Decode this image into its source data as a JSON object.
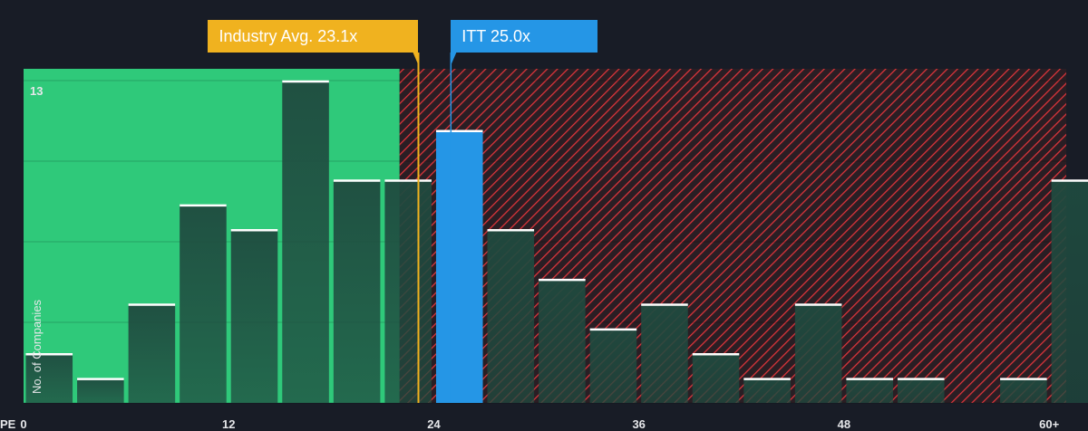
{
  "chart_data": {
    "type": "bar",
    "xlabel": "PE",
    "ylabel": "No. of Companies",
    "x_ticks": [
      "0",
      "12",
      "24",
      "36",
      "48",
      "60+"
    ],
    "x_tick_values": [
      0,
      12,
      24,
      36,
      48,
      60
    ],
    "xlim": [
      0,
      61
    ],
    "ylim": [
      0,
      13
    ],
    "y_tick_label": "13",
    "y_gridlines": [
      0,
      3.25,
      6.5,
      9.75,
      13
    ],
    "bin_width": 3,
    "bins": [
      {
        "start": 0,
        "value": 2
      },
      {
        "start": 3,
        "value": 1
      },
      {
        "start": 6,
        "value": 4
      },
      {
        "start": 9,
        "value": 8
      },
      {
        "start": 12,
        "value": 7
      },
      {
        "start": 15,
        "value": 13
      },
      {
        "start": 18,
        "value": 9
      },
      {
        "start": 21,
        "value": 9
      },
      {
        "start": 24,
        "value": 11,
        "highlight": true
      },
      {
        "start": 27,
        "value": 7
      },
      {
        "start": 30,
        "value": 5
      },
      {
        "start": 33,
        "value": 3
      },
      {
        "start": 36,
        "value": 4
      },
      {
        "start": 39,
        "value": 2
      },
      {
        "start": 42,
        "value": 1
      },
      {
        "start": 45,
        "value": 4
      },
      {
        "start": 48,
        "value": 1
      },
      {
        "start": 51,
        "value": 1
      },
      {
        "start": 54,
        "value": 0
      },
      {
        "start": 57,
        "value": 1
      },
      {
        "start": 60,
        "value": 9
      }
    ],
    "fair_zone_end": 22,
    "industry_avg": {
      "label": "Industry Avg. 23.1x",
      "value": 23.1
    },
    "company": {
      "label": "ITT 25.0x",
      "value": 25.0
    },
    "colors": {
      "background": "#181c26",
      "fair_zone": "#2fc97a",
      "over_zone_hatch": "#e0353b",
      "bar": "#1e4a3e",
      "bar_cap": "#ffffff",
      "highlight_bar": "#2596e6",
      "industry": "#f0b21f",
      "company": "#2596e6"
    }
  }
}
